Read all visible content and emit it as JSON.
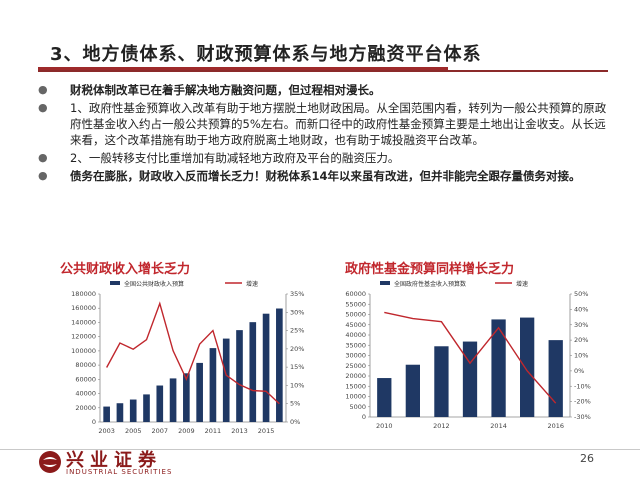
{
  "header": {
    "title": "3、地方债体系、财政预算体系与地方融资平台体系"
  },
  "bullets": [
    {
      "text": "财税体制改革已在着手解决地方融资问题，但过程相对漫长。",
      "bold": true
    },
    {
      "text": "1、政府性基金预算收入改革有助于地方摆脱土地财政困局。从全国范围内看，转列为一般公共预算的原政府性基金收入约占一般公共预算的5%左右。而新口径中的政府性基金预算主要是土地出让金收支。从长远来看，这个改革措施有助于地方政府脱离土地财政，也有助于城投融资平台改革。",
      "bold": false
    },
    {
      "text": "2、一般转移支付比重增加有助减轻地方政府及平台的融资压力。",
      "bold": false
    },
    {
      "text": "债务在膨胀，财政收入反而增长乏力！财税体系14年以来虽有改进，但并非能完全跟存量债务对接。",
      "bold": true
    }
  ],
  "chart_data": [
    {
      "type": "bar",
      "title": "公共财政收入增长乏力",
      "legend": [
        "全国公共财政收入预算",
        "增速"
      ],
      "x": [
        "2003",
        "2004",
        "2005",
        "2006",
        "2007",
        "2008",
        "2009",
        "2010",
        "2011",
        "2012",
        "2013",
        "2014",
        "2015",
        "2016"
      ],
      "x_ticks": [
        "2003",
        "2005",
        "2007",
        "2009",
        "2011",
        "2013",
        "2015"
      ],
      "series": [
        {
          "name": "全国公共财政收入预算",
          "type": "bar",
          "axis": "left",
          "values": [
            21700,
            26400,
            31600,
            38800,
            51300,
            61300,
            68500,
            83100,
            103900,
            117300,
            129200,
            140400,
            152300,
            159600
          ]
        },
        {
          "name": "增速",
          "type": "line",
          "axis": "right",
          "values": [
            14.9,
            21.6,
            19.9,
            22.5,
            32.4,
            19.5,
            11.7,
            21.3,
            25.0,
            12.8,
            10.2,
            8.6,
            8.4,
            5.0
          ]
        }
      ],
      "yleft_ticks": [
        "0",
        "20000",
        "40000",
        "60000",
        "80000",
        "100000",
        "120000",
        "140000",
        "160000",
        "180000"
      ],
      "yleft_range": [
        0,
        180000
      ],
      "yright_ticks": [
        "0%",
        "5%",
        "10%",
        "15%",
        "20%",
        "25%",
        "30%",
        "35%"
      ],
      "yright_range": [
        0,
        35
      ],
      "colors": {
        "bar": "#1f3864",
        "line": "#c0272d"
      }
    },
    {
      "type": "bar",
      "title": "政府性基金预算同样增长乏力",
      "legend": [
        "全国政府性基金收入预算数",
        "增速"
      ],
      "x": [
        "2010",
        "2011",
        "2012",
        "2013",
        "2014",
        "2015",
        "2016"
      ],
      "x_ticks": [
        "2010",
        "2012",
        "2014",
        "2016"
      ],
      "series": [
        {
          "name": "全国政府性基金收入预算数",
          "type": "bar",
          "axis": "left",
          "values": [
            19000,
            25500,
            34500,
            36800,
            47600,
            48500,
            37500
          ]
        },
        {
          "name": "增速",
          "type": "line",
          "axis": "right",
          "values": [
            38,
            34,
            32,
            5,
            28,
            0,
            -21
          ]
        }
      ],
      "yleft_ticks": [
        "0",
        "5000",
        "10000",
        "15000",
        "20000",
        "25000",
        "30000",
        "35000",
        "40000",
        "45000",
        "50000",
        "55000",
        "60000"
      ],
      "yleft_range": [
        0,
        60000
      ],
      "yright_ticks": [
        "-30%",
        "-20%",
        "-10%",
        "0%",
        "10%",
        "20%",
        "30%",
        "40%",
        "50%"
      ],
      "yright_range": [
        -30,
        50
      ],
      "colors": {
        "bar": "#1f3864",
        "line": "#c0272d"
      }
    }
  ],
  "footer": {
    "logo_cn": "兴业证券",
    "logo_en": "INDUSTRIAL SECURITIES",
    "page_number": "26"
  }
}
